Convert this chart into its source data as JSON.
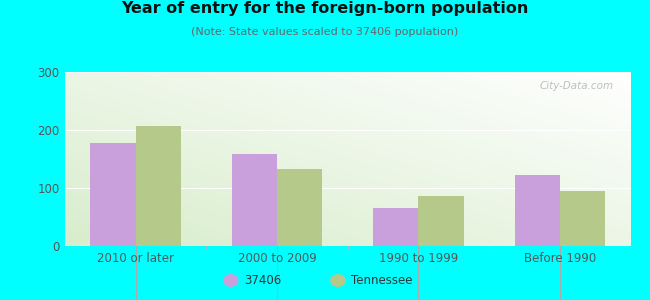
{
  "title": "Year of entry for the foreign-born population",
  "subtitle": "(Note: State values scaled to 37406 population)",
  "categories": [
    "2010 or later",
    "2000 to 2009",
    "1990 to 1999",
    "Before 1990"
  ],
  "values_37406": [
    178,
    158,
    65,
    122
  ],
  "values_tennessee": [
    207,
    133,
    87,
    95
  ],
  "bar_color_37406": "#c9a0dc",
  "bar_color_tennessee": "#b5c98a",
  "background_color": "#00ffff",
  "ylim": [
    0,
    300
  ],
  "yticks": [
    0,
    100,
    200,
    300
  ],
  "bar_width": 0.32,
  "legend_label_37406": "37406",
  "legend_label_tennessee": "Tennessee",
  "watermark": "City-Data.com"
}
